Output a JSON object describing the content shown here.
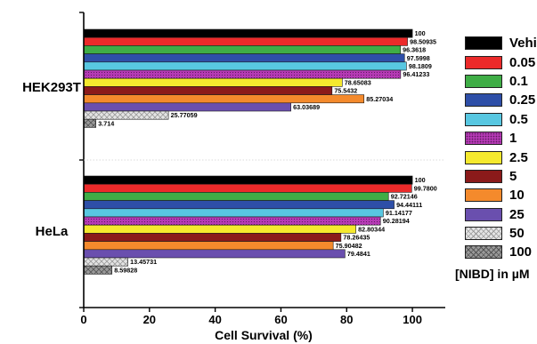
{
  "chart_data": {
    "type": "bar",
    "orientation": "horizontal",
    "xlabel": "Cell Survival (%)",
    "xlim": [
      0,
      110
    ],
    "xticks": [
      0,
      20,
      40,
      60,
      80,
      100
    ],
    "grid": false,
    "legend_position": "right",
    "legend_units": "[NIBD] in µM",
    "groups": [
      {
        "name": "HEK293T",
        "values": [
          100,
          98.50935,
          96.3618,
          97.5998,
          98.1809,
          96.41233,
          78.65083,
          75.5432,
          85.27034,
          63.03689,
          25.77059,
          3.714
        ],
        "labels": [
          "100",
          "98.50935",
          "96.3618",
          "97.5998",
          "98.1809",
          "96.41233",
          "78.65083",
          "75.5432",
          "85.27034",
          "63.03689",
          "25.77059",
          "3.714"
        ]
      },
      {
        "name": "HeLa",
        "values": [
          100,
          99.78,
          92.72146,
          94.44111,
          91.14177,
          90.28194,
          82.80344,
          78.26435,
          75.90482,
          79.4841,
          13.45731,
          8.59828
        ],
        "labels": [
          "100",
          "99.7800",
          "92.72146",
          "94.44111",
          "91.14177",
          "90.28194",
          "82.80344",
          "78.26435",
          "75.90482",
          "79.4841",
          "13.45731",
          "8.59828"
        ]
      }
    ],
    "series": [
      {
        "name": "Vehicle",
        "color": "#000000"
      },
      {
        "name": "0.05",
        "color": "#ec2a2a"
      },
      {
        "name": "0.1",
        "color": "#3fad46"
      },
      {
        "name": "0.25",
        "color": "#2e4fa8"
      },
      {
        "name": "0.5",
        "color": "#58c7e1"
      },
      {
        "name": "1",
        "color": "#b53ab5",
        "pattern": "dotted"
      },
      {
        "name": "2.5",
        "color": "#f5e92e"
      },
      {
        "name": "5",
        "color": "#8b1a1a"
      },
      {
        "name": "10",
        "color": "#f48a2c"
      },
      {
        "name": "25",
        "color": "#6a4fae"
      },
      {
        "name": "50",
        "color": "#d8d8d8",
        "pattern": "crosshatch-light"
      },
      {
        "name": "100",
        "color": "#8a8a8a",
        "pattern": "crosshatch-dark"
      }
    ]
  }
}
